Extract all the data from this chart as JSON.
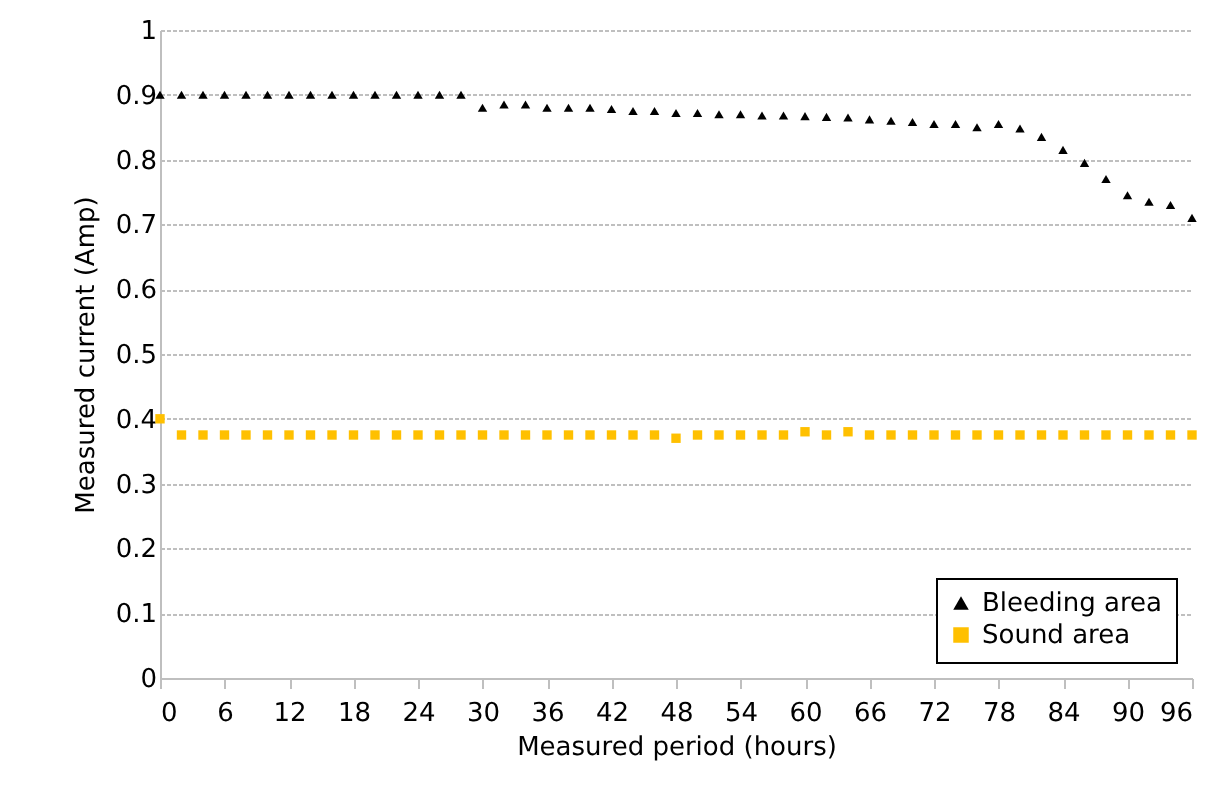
{
  "chart_data": {
    "type": "scatter",
    "xlabel": "Measured period (hours)",
    "ylabel": "Measured current (Amp)",
    "xlim": [
      0,
      96
    ],
    "xticks": [
      0,
      6,
      12,
      18,
      24,
      30,
      36,
      42,
      48,
      54,
      60,
      66,
      72,
      78,
      84,
      90,
      96
    ],
    "ylim": [
      0,
      1
    ],
    "yticks": [
      0,
      0.1,
      0.2,
      0.3,
      0.4,
      0.5,
      0.6,
      0.7,
      0.8,
      0.9,
      1
    ],
    "grid": "y",
    "legend": "bottom right",
    "series": [
      {
        "name": "Bleeding area",
        "color": "#000000",
        "marker": "triangle",
        "x": [
          0,
          2,
          4,
          6,
          8,
          10,
          12,
          14,
          16,
          18,
          20,
          22,
          24,
          26,
          28,
          30,
          32,
          34,
          36,
          38,
          40,
          42,
          44,
          46,
          48,
          50,
          52,
          54,
          56,
          58,
          60,
          62,
          64,
          66,
          68,
          70,
          72,
          74,
          76,
          78,
          80,
          82,
          84,
          86,
          88,
          90,
          92,
          94,
          96
        ],
        "values": [
          0.9,
          0.9,
          0.9,
          0.9,
          0.9,
          0.9,
          0.9,
          0.9,
          0.9,
          0.9,
          0.9,
          0.9,
          0.9,
          0.9,
          0.9,
          0.88,
          0.885,
          0.885,
          0.88,
          0.88,
          0.88,
          0.878,
          0.875,
          0.875,
          0.872,
          0.872,
          0.87,
          0.87,
          0.868,
          0.868,
          0.867,
          0.866,
          0.865,
          0.862,
          0.86,
          0.858,
          0.855,
          0.855,
          0.85,
          0.855,
          0.848,
          0.835,
          0.815,
          0.795,
          0.77,
          0.745,
          0.735,
          0.73,
          0.71
        ]
      },
      {
        "name": "Sound area",
        "color": "#ffc000",
        "marker": "square",
        "x": [
          0,
          2,
          4,
          6,
          8,
          10,
          12,
          14,
          16,
          18,
          20,
          22,
          24,
          26,
          28,
          30,
          32,
          34,
          36,
          38,
          40,
          42,
          44,
          46,
          48,
          50,
          52,
          54,
          56,
          58,
          60,
          62,
          64,
          66,
          68,
          70,
          72,
          74,
          76,
          78,
          80,
          82,
          84,
          86,
          88,
          90,
          92,
          94,
          96
        ],
        "values": [
          0.4,
          0.375,
          0.375,
          0.375,
          0.375,
          0.375,
          0.375,
          0.375,
          0.375,
          0.375,
          0.375,
          0.375,
          0.375,
          0.375,
          0.375,
          0.375,
          0.375,
          0.375,
          0.375,
          0.375,
          0.375,
          0.375,
          0.375,
          0.375,
          0.37,
          0.375,
          0.375,
          0.375,
          0.375,
          0.375,
          0.38,
          0.375,
          0.38,
          0.375,
          0.375,
          0.375,
          0.375,
          0.375,
          0.375,
          0.375,
          0.375,
          0.375,
          0.375,
          0.375,
          0.375,
          0.375,
          0.375,
          0.375,
          0.375
        ]
      }
    ]
  }
}
